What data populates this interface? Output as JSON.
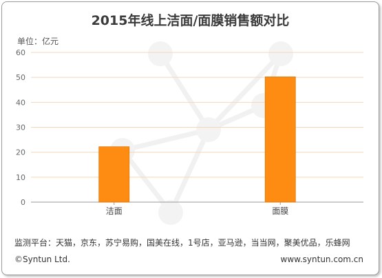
{
  "header": {
    "unit_label": "单位：亿元"
  },
  "footer": {
    "source": "监测平台：天猫，京东，苏宁易购，国美在线，1号店，亚马逊，当当网，聚美优品，乐蜂网",
    "copyright": "©Syntun Ltd.",
    "website": "www.syntun.com.cn"
  },
  "colors": {
    "bar": "#ff8c12",
    "bar_edge": "#e07400",
    "grid": "#f5d7b8",
    "axis": "#999999"
  },
  "chart_data": {
    "type": "bar",
    "title": "2015年线上洁面/面膜销售额对比",
    "categories": [
      "洁面",
      "面膜"
    ],
    "values": [
      22.2,
      50.2
    ],
    "ylim": [
      0,
      60
    ],
    "yticks": [
      "0",
      "10",
      "20",
      "30",
      "40",
      "50",
      "60"
    ],
    "xlabel": "",
    "ylabel": "",
    "grid": true
  }
}
